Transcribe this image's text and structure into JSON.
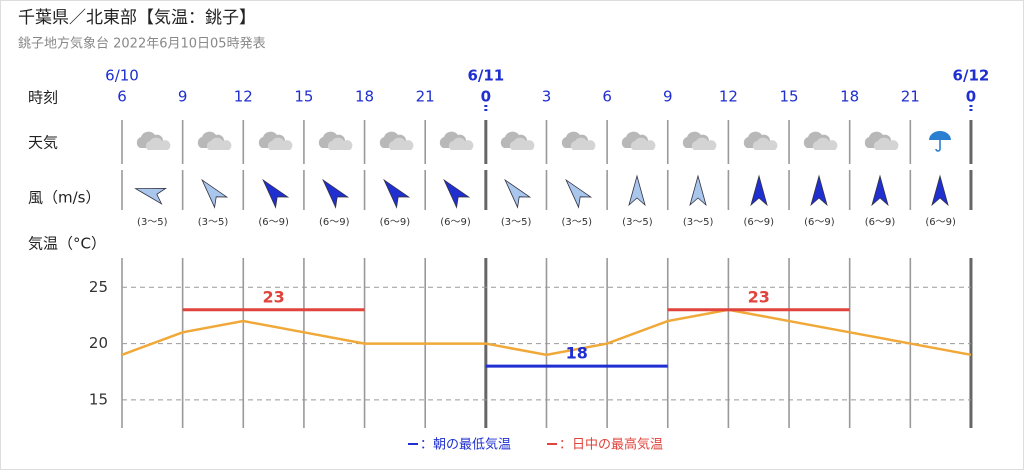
{
  "header": {
    "title": "千葉県／北東部【気温：銚子】",
    "subtitle": "銚子地方気象台 2022年6月10日05時発表"
  },
  "rows": {
    "time": "時刻",
    "weather": "天気",
    "wind": "風（m/s）"
  },
  "wind_labels": [
    "(3～5)",
    "(3～5)",
    "(6～9)",
    "(6～9)",
    "(6～9)",
    "(6～9)",
    "(3～5)",
    "(3～5)",
    "(3～5)",
    "(3～5)",
    "(6～9)",
    "(6～9)",
    "(6～9)",
    "(6～9)"
  ],
  "chart_data": {
    "type": "line",
    "ylabel": "気温（°C）",
    "dates": [
      "6/10",
      null,
      null,
      null,
      null,
      null,
      "6/11",
      null,
      null,
      null,
      null,
      null,
      null,
      null,
      "6/12"
    ],
    "categories": [
      "6",
      "9",
      "12",
      "15",
      "18",
      "21",
      "0",
      "3",
      "6",
      "9",
      "12",
      "15",
      "18",
      "21",
      "0"
    ],
    "series": [
      {
        "color": "#f0a838",
        "values": [
          19,
          21,
          22,
          21,
          20,
          20,
          20,
          19,
          20,
          22,
          23,
          22,
          21,
          20,
          19
        ]
      },
      {
        "name": "：朝の最低気温",
        "color": "#1f2fd0",
        "values": [
          null,
          null,
          null,
          null,
          null,
          null,
          18,
          18,
          18,
          18,
          null,
          null,
          null,
          null,
          null
        ]
      },
      {
        "name": "：日中の最高気温",
        "color": "#e0443c",
        "values": [
          null,
          23,
          23,
          23,
          23,
          null,
          null,
          null,
          null,
          23,
          23,
          23,
          23,
          null,
          null
        ]
      }
    ],
    "ylim": [
      12.5,
      27.6
    ],
    "yticks": [
      15,
      20,
      25
    ],
    "grid": true
  }
}
